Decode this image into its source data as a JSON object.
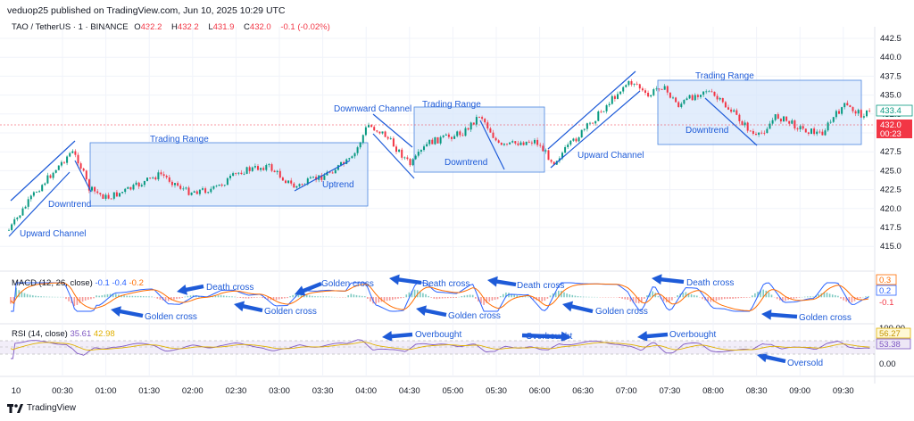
{
  "header": {
    "publisher": "veduop25 published on TradingView.com, Jun 10, 2025 10:29 UTC"
  },
  "legend": {
    "symbol": "TAO / TetherUS · 1 · BINANCE",
    "open_label": "O",
    "open": "432.2",
    "high_label": "H",
    "high": "432.2",
    "low_label": "L",
    "low": "431.9",
    "close_label": "C",
    "close": "432.0",
    "change": "-0.1 (-0.02%)"
  },
  "price_axis": {
    "ticks": [
      "442.5",
      "440.0",
      "437.5",
      "435.0",
      "432.5",
      "430.0",
      "427.5",
      "425.0",
      "422.5",
      "420.0",
      "417.5",
      "415.0"
    ],
    "last_price": "432.0",
    "countdown": "00:23",
    "last_green": "433.4"
  },
  "macd": {
    "label": "MACD (12, 26, close)",
    "v1": "-0.1",
    "v2": "-0.4",
    "v3": "-0.2",
    "axis_top": "0.3",
    "axis_mid": "0.2",
    "axis_bot": "-0.1"
  },
  "rsi": {
    "label": "RSI (14, close)",
    "v1": "35.61",
    "v2": "42.98",
    "axis_100": "100.00",
    "axis_top": "56.27",
    "axis_mid": "53.38",
    "axis_zero": "0.00"
  },
  "time_axis": {
    "ticks": [
      "10",
      "00:30",
      "01:00",
      "01:30",
      "02:00",
      "02:30",
      "03:00",
      "03:30",
      "04:00",
      "04:30",
      "05:00",
      "05:30",
      "06:00",
      "06:30",
      "07:00",
      "07:30",
      "08:00",
      "08:30",
      "09:00",
      "09:30"
    ]
  },
  "annotations": {
    "upward_channel_1": "Upward Channel",
    "downtrend_1": "Downtrend",
    "trading_range_1": "Trading Range",
    "uptrend": "Uptrend",
    "downward_channel": "Downward Channel",
    "trading_range_2": "Trading Range",
    "downtrend_2": "Downtrend",
    "upward_channel_2": "Upward Channel",
    "trading_range_3": "Trading Range",
    "downtrend_3": "Downtrend",
    "golden_cross_1": "Golden cross",
    "death_cross_1": "Death cross",
    "golden_cross_2": "Golden cross",
    "golden_cross_3": "Golden cross",
    "death_cross_2": "Death cross",
    "golden_cross_4": "Golden cross",
    "death_cross_3": "Death cross",
    "golden_cross_5": "Golden cross",
    "death_cross_4": "Death cross",
    "golden_cross_6": "Golden cross",
    "overbought_1": "Overbought",
    "overbought_2": "Overbought",
    "overbought_3": "Overbought",
    "oversold": "Oversold"
  },
  "footer": {
    "brand": "TradingView"
  },
  "colors": {
    "up": "#089981",
    "down": "#f23645",
    "annotation": "#1e5bd8",
    "box_fill": "#d6e6fb"
  }
}
